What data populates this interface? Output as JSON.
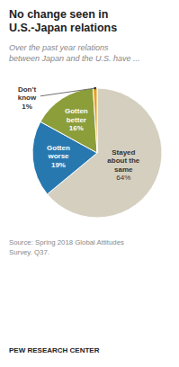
{
  "chart_data": {
    "type": "pie",
    "title": "No change seen in\nU.S.-Japan relations",
    "subtitle": "Over the past year relations\nbetween Japan and the U.S. have ...",
    "categories": [
      "Stayed\nabout the\nsame",
      "Gotten\nworse",
      "Gotten\nbetter",
      "Don't\nknow"
    ],
    "values": [
      64,
      19,
      16,
      1
    ],
    "value_labels": [
      "64%",
      "19%",
      "16%",
      "1%"
    ],
    "colors": [
      "#d5cfc0",
      "#2878b0",
      "#8c9e3a",
      "#e8a020"
    ],
    "data_labels": true,
    "annotations": [
      "Source: Spring 2018 Global Attitudes\nSurvey. Q37.",
      "PEW RESEARCH CENTER"
    ]
  }
}
